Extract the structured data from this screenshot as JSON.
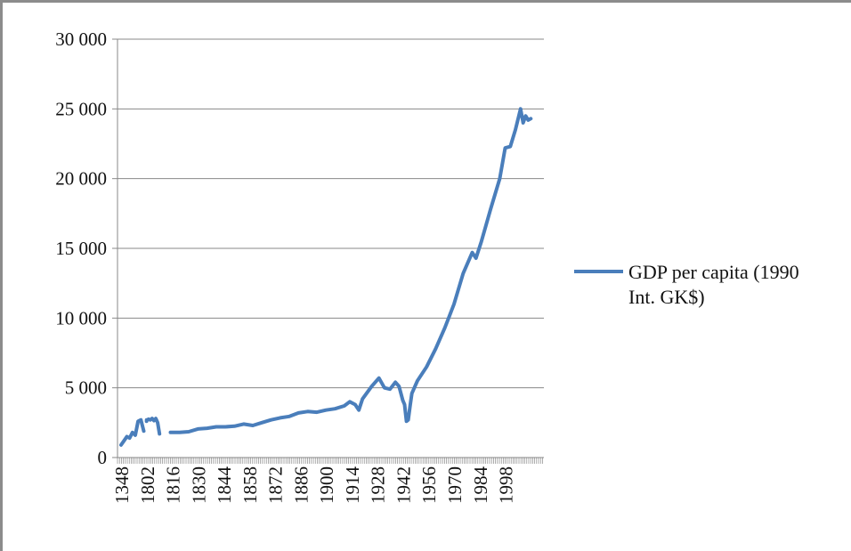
{
  "chart_data": {
    "type": "line",
    "title": "",
    "xlabel": "",
    "ylabel": "",
    "ylim": [
      0,
      30000
    ],
    "yticks": [
      0,
      5000,
      10000,
      15000,
      20000,
      25000,
      30000
    ],
    "ytick_labels": [
      "0",
      "5 000",
      "10 000",
      "15 000",
      "20 000",
      "25 000",
      "30 000"
    ],
    "xtick_labels": [
      "1348",
      "1802",
      "1816",
      "1830",
      "1844",
      "1858",
      "1872",
      "1886",
      "1900",
      "1914",
      "1928",
      "1942",
      "1956",
      "1970",
      "1984",
      "1998"
    ],
    "grid": true,
    "legend_position": "right",
    "line_color": "#4a7ebb",
    "series": [
      {
        "name": "GDP per capita (1990 Int. GK$)",
        "segments": [
          [
            [
              "1348",
              900
            ],
            [
              "1400",
              1200
            ],
            [
              "1450",
              1500
            ],
            [
              "1500",
              1400
            ],
            [
              "1550",
              1800
            ],
            [
              "1600",
              1600
            ],
            [
              "1650",
              2600
            ],
            [
              "1700",
              2700
            ],
            [
              "1750",
              1900
            ]
          ],
          [
            [
              "1800",
              2600
            ],
            [
              "1801",
              2700
            ],
            [
              "1802",
              2650
            ],
            [
              "1803",
              2750
            ],
            [
              "1804",
              2700
            ],
            [
              "1805",
              2800
            ],
            [
              "1806",
              2650
            ],
            [
              "1807",
              2800
            ],
            [
              "1808",
              2500
            ],
            [
              "1809",
              1700
            ]
          ],
          [
            [
              "1815",
              1800
            ],
            [
              "1820",
              1800
            ],
            [
              "1825",
              1850
            ],
            [
              "1830",
              2050
            ],
            [
              "1835",
              2100
            ],
            [
              "1840",
              2200
            ],
            [
              "1845",
              2200
            ],
            [
              "1850",
              2250
            ],
            [
              "1855",
              2400
            ],
            [
              "1860",
              2300
            ],
            [
              "1865",
              2500
            ],
            [
              "1870",
              2700
            ],
            [
              "1875",
              2850
            ],
            [
              "1880",
              2950
            ],
            [
              "1885",
              3200
            ],
            [
              "1890",
              3300
            ],
            [
              "1895",
              3250
            ],
            [
              "1900",
              3400
            ],
            [
              "1905",
              3500
            ],
            [
              "1910",
              3700
            ],
            [
              "1913",
              4000
            ],
            [
              "1916",
              3800
            ],
            [
              "1918",
              3400
            ],
            [
              "1920",
              4200
            ],
            [
              "1925",
              5100
            ],
            [
              "1929",
              5700
            ],
            [
              "1932",
              5000
            ],
            [
              "1935",
              4900
            ],
            [
              "1938",
              5400
            ],
            [
              "1940",
              5100
            ],
            [
              "1942",
              4100
            ],
            [
              "1943",
              3800
            ],
            [
              "1944",
              2600
            ],
            [
              "1945",
              2700
            ],
            [
              "1946",
              3700
            ],
            [
              "1947",
              4600
            ],
            [
              "1950",
              5500
            ],
            [
              "1955",
              6500
            ],
            [
              "1960",
              7800
            ],
            [
              "1965",
              9300
            ],
            [
              "1970",
              11000
            ],
            [
              "1975",
              13200
            ],
            [
              "1980",
              14700
            ],
            [
              "1982",
              14300
            ],
            [
              "1985",
              15500
            ],
            [
              "1990",
              17800
            ],
            [
              "1995",
              20000
            ],
            [
              "1998",
              22200
            ],
            [
              "2000",
              22300
            ],
            [
              "2002",
              23500
            ],
            [
              "2004",
              25000
            ],
            [
              "2005",
              24000
            ],
            [
              "2006",
              24500
            ],
            [
              "2007",
              24200
            ],
            [
              "2008",
              24300
            ]
          ]
        ]
      }
    ]
  }
}
